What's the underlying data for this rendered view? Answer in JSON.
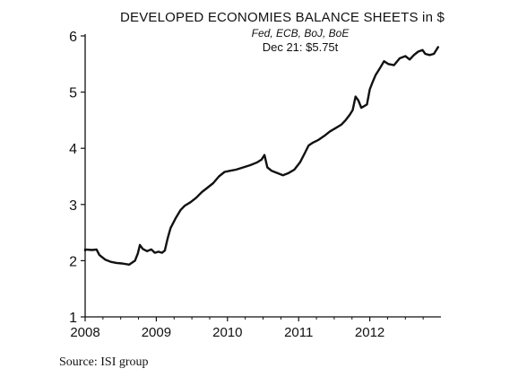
{
  "chart_data": {
    "type": "line",
    "title": "DEVELOPED ECONOMIES BALANCE SHEETS in $",
    "subtitle": "Fed, ECB, BoJ, BoE",
    "annotation": "Dec 21: $5.75t",
    "source": "Source: ISI group",
    "xlabel": "",
    "ylabel": "",
    "xlim": [
      2008,
      2013
    ],
    "ylim": [
      1,
      6
    ],
    "x_ticks": [
      "2008",
      "2009",
      "2010",
      "2011",
      "2012"
    ],
    "y_ticks": [
      "1",
      "2",
      "3",
      "4",
      "5",
      "6"
    ],
    "grid": false,
    "series": [
      {
        "values": [
          [
            2008.0,
            2.18
          ],
          [
            2008.0,
            2.2
          ],
          [
            2008.1,
            2.19
          ],
          [
            2008.16,
            2.2
          ],
          [
            2008.2,
            2.1
          ],
          [
            2008.28,
            2.02
          ],
          [
            2008.36,
            1.98
          ],
          [
            2008.44,
            1.96
          ],
          [
            2008.52,
            1.95
          ],
          [
            2008.62,
            1.93
          ],
          [
            2008.7,
            2.0
          ],
          [
            2008.74,
            2.13
          ],
          [
            2008.77,
            2.28
          ],
          [
            2008.81,
            2.21
          ],
          [
            2008.87,
            2.17
          ],
          [
            2008.93,
            2.2
          ],
          [
            2008.98,
            2.14
          ],
          [
            2009.03,
            2.16
          ],
          [
            2009.08,
            2.14
          ],
          [
            2009.12,
            2.18
          ],
          [
            2009.16,
            2.4
          ],
          [
            2009.2,
            2.58
          ],
          [
            2009.27,
            2.75
          ],
          [
            2009.34,
            2.9
          ],
          [
            2009.4,
            2.98
          ],
          [
            2009.48,
            3.04
          ],
          [
            2009.56,
            3.12
          ],
          [
            2009.64,
            3.22
          ],
          [
            2009.72,
            3.3
          ],
          [
            2009.8,
            3.38
          ],
          [
            2009.88,
            3.5
          ],
          [
            2009.96,
            3.58
          ],
          [
            2010.04,
            3.6
          ],
          [
            2010.12,
            3.62
          ],
          [
            2010.22,
            3.66
          ],
          [
            2010.32,
            3.7
          ],
          [
            2010.42,
            3.75
          ],
          [
            2010.48,
            3.8
          ],
          [
            2010.52,
            3.88
          ],
          [
            2010.56,
            3.66
          ],
          [
            2010.62,
            3.6
          ],
          [
            2010.7,
            3.56
          ],
          [
            2010.78,
            3.52
          ],
          [
            2010.86,
            3.56
          ],
          [
            2010.94,
            3.62
          ],
          [
            2011.02,
            3.75
          ],
          [
            2011.08,
            3.9
          ],
          [
            2011.14,
            4.05
          ],
          [
            2011.2,
            4.1
          ],
          [
            2011.28,
            4.15
          ],
          [
            2011.36,
            4.22
          ],
          [
            2011.44,
            4.3
          ],
          [
            2011.52,
            4.36
          ],
          [
            2011.6,
            4.42
          ],
          [
            2011.66,
            4.5
          ],
          [
            2011.72,
            4.6
          ],
          [
            2011.76,
            4.68
          ],
          [
            2011.8,
            4.92
          ],
          [
            2011.84,
            4.85
          ],
          [
            2011.88,
            4.72
          ],
          [
            2011.92,
            4.75
          ],
          [
            2011.96,
            4.78
          ],
          [
            2012.0,
            5.05
          ],
          [
            2012.04,
            5.18
          ],
          [
            2012.08,
            5.3
          ],
          [
            2012.14,
            5.42
          ],
          [
            2012.2,
            5.55
          ],
          [
            2012.26,
            5.5
          ],
          [
            2012.34,
            5.48
          ],
          [
            2012.42,
            5.6
          ],
          [
            2012.5,
            5.64
          ],
          [
            2012.56,
            5.58
          ],
          [
            2012.62,
            5.66
          ],
          [
            2012.68,
            5.72
          ],
          [
            2012.74,
            5.75
          ],
          [
            2012.78,
            5.68
          ],
          [
            2012.84,
            5.66
          ],
          [
            2012.9,
            5.68
          ],
          [
            2012.96,
            5.8
          ]
        ]
      }
    ]
  }
}
